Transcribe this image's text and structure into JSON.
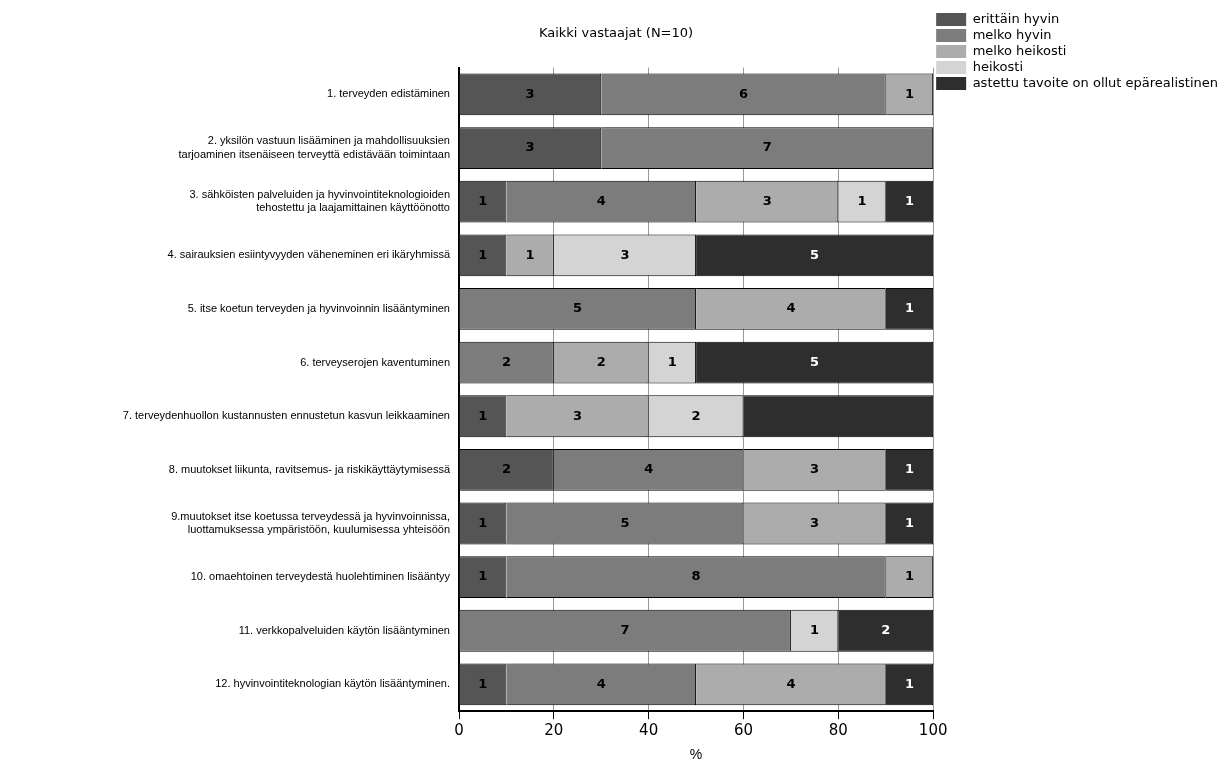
{
  "chart_data": {
    "type": "bar",
    "orientation": "horizontal",
    "stacked": true,
    "title": "Kaikki vastaajat (N=10)",
    "xlabel": "%",
    "categories": [
      "1. terveyden edistäminen",
      "2. yksilön vastuun lisääminen ja mahdollisuuksien\ntarjoaminen itsenäiseen terveyttä edistävään toimintaan",
      "3. sähköisten palveluiden ja hyvinvointiteknologioiden\ntehostettu ja laajamittainen käyttöönotto",
      "4. sairauksien esiintyvyyden väheneminen eri ikäryhmissä",
      "5. itse koetun terveyden ja hyvinvoinnin lisääntyminen",
      "6. terveyserojen kaventuminen",
      "7. terveydenhuollon kustannusten ennustetun kasvun leikkaaminen",
      "8. muutokset liikunta, ravitsemus- ja riskikäyttäytymisessä",
      "9.muutokset itse koetussa terveydessä ja hyvinvoinnissa,\nluottamuksessa ympäristöön, kuulumisessa yhteisöön",
      "10. omaehtoinen terveydestä huolehtiminen lisääntyy",
      "11. verkkopalveluiden käytön lisääntyminen",
      "12. hyvinvointiteknologian käytön lisääntyminen."
    ],
    "series": [
      {
        "name": "erittäin hyvin",
        "color": "#555555",
        "values": [
          30,
          30,
          10,
          10,
          0,
          0,
          10,
          20,
          10,
          10,
          0,
          10
        ]
      },
      {
        "name": "melko hyvin",
        "color": "#7c7c7c",
        "values": [
          60,
          70,
          40,
          0,
          50,
          20,
          0,
          40,
          50,
          80,
          70,
          40
        ]
      },
      {
        "name": "melko heikosti",
        "color": "#acacac",
        "values": [
          10,
          0,
          30,
          10,
          40,
          20,
          30,
          30,
          30,
          10,
          0,
          40
        ]
      },
      {
        "name": "heikosti",
        "color": "#d4d4d4",
        "values": [
          0,
          0,
          10,
          30,
          0,
          10,
          20,
          0,
          0,
          0,
          10,
          0
        ]
      },
      {
        "name": "astettu tavoite on ollut epärealistinen",
        "color": "#2e2e2e",
        "values": [
          0,
          0,
          10,
          50,
          10,
          50,
          40,
          10,
          10,
          0,
          20,
          10
        ]
      }
    ],
    "annotations": [
      {
        "text": "3",
        "x": 15,
        "y": "1. terveyden edistäminen"
      },
      {
        "text": "6",
        "x": 60,
        "y": "1. terveyden edistäminen"
      },
      {
        "text": "1",
        "x": 95,
        "y": "1. terveyden edistäminen"
      },
      {
        "text": "3",
        "x": 15,
        "y": "2. yksilön vastuun lisääminen ja mahdollisuuksien\ntarjoaminen itsenäiseen terveyttä edistävään toimintaan"
      },
      {
        "text": "7",
        "x": 65,
        "y": "2. yksilön vastuun lisääminen ja mahdollisuuksien\ntarjoaminen itsenäiseen terveyttä edistävään toimintaan"
      },
      {
        "text": "1",
        "x": 5,
        "y": "3. sähköisten palveluiden ja hyvinvointiteknologioiden\ntehostettu ja laajamittainen käyttöönotto"
      },
      {
        "text": "4",
        "x": 30,
        "y": "3. sähköisten palveluiden ja hyvinvointiteknologioiden\ntehostettu ja laajamittainen käyttöönotto"
      },
      {
        "text": "3",
        "x": 65,
        "y": "3. sähköisten palveluiden ja hyvinvointiteknologioiden\ntehostettu ja laajamittainen käyttöönotto"
      },
      {
        "text": "1",
        "x": 85,
        "y": "3. sähköisten palveluiden ja hyvinvointiteknologioiden\ntehostettu ja laajamittainen käyttöönotto"
      },
      {
        "text": "1",
        "x": 95,
        "y": "3. sähköisten palveluiden ja hyvinvointiteknologioiden\ntehostettu ja laajamittainen käyttöönotto"
      },
      {
        "text": "1",
        "x": 5,
        "y": "4. sairauksien esiintyvyyden väheneminen eri ikäryhmissä"
      },
      {
        "text": "1",
        "x": 15,
        "y": "4. sairauksien esiintyvyyden väheneminen eri ikäryhmissä"
      },
      {
        "text": "3",
        "x": 35,
        "y": "4. sairauksien esiintyvyyden väheneminen eri ikäryhmissä"
      },
      {
        "text": "5",
        "x": 75,
        "y": "4. sairauksien esiintyvyyden väheneminen eri ikäryhmissä"
      },
      {
        "text": "5",
        "x": 25,
        "y": "5. itse koetun terveyden ja hyvinvoinnin lisääntyminen"
      },
      {
        "text": "4",
        "x": 70,
        "y": "5. itse koetun terveyden ja hyvinvoinnin lisääntyminen"
      },
      {
        "text": "1",
        "x": 95,
        "y": "5. itse koetun terveyden ja hyvinvoinnin lisääntyminen"
      },
      {
        "text": "2",
        "x": 10,
        "y": "6. terveyserojen kaventuminen"
      },
      {
        "text": "2",
        "x": 30,
        "y": "6. terveyserojen kaventuminen"
      },
      {
        "text": "1",
        "x": 45,
        "y": "6. terveyserojen kaventuminen"
      },
      {
        "text": "5",
        "x": 75,
        "y": "6. terveyserojen kaventuminen"
      },
      {
        "text": "1",
        "x": 5,
        "y": "7. terveydenhuollon kustannusten ennustetun kasvun leikkaaminen"
      },
      {
        "text": "3",
        "x": 25,
        "y": "7. terveydenhuollon kustannusten ennustetun kasvun leikkaaminen"
      },
      {
        "text": "2",
        "x": 50,
        "y": "7. terveydenhuollon kustannusten ennustetun kasvun leikkaaminen"
      },
      {
        "text": "2",
        "x": 10,
        "y": "8. muutokset liikunta, ravitsemus- ja riskikäyttäytymisessä"
      },
      {
        "text": "4",
        "x": 40,
        "y": "8. muutokset liikunta, ravitsemus- ja riskikäyttäytymisessä"
      },
      {
        "text": "3",
        "x": 75,
        "y": "8. muutokset liikunta, ravitsemus- ja riskikäyttäytymisessä"
      },
      {
        "text": "1",
        "x": 95,
        "y": "8. muutokset liikunta, ravitsemus- ja riskikäyttäytymisessä"
      },
      {
        "text": "1",
        "x": 5,
        "y": "9.muutokset itse koetussa terveydessä ja hyvinvoinnissa,\nluottamuksessa ympäristöön, kuulumisessa yhteisöön"
      },
      {
        "text": "5",
        "x": 35,
        "y": "9.muutokset itse koetussa terveydessä ja hyvinvoinnissa,\nluottamuksessa ympäristöön, kuulumisessa yhteisöön"
      },
      {
        "text": "3",
        "x": 75,
        "y": "9.muutokset itse koetussa terveydessä ja hyvinvoinnissa,\nluottamuksessa ympäristöön, kuulumisessa yhteisöön"
      },
      {
        "text": "1",
        "x": 95,
        "y": "9.muutokset itse koetussa terveydessä ja hyvinvoinnissa,\nluottamuksessa ympäristöön, kuulumisessa yhteisöön"
      },
      {
        "text": "1",
        "x": 5,
        "y": "10. omaehtoinen terveydestä huolehtiminen lisääntyy"
      },
      {
        "text": "8",
        "x": 50,
        "y": "10. omaehtoinen terveydestä huolehtiminen lisääntyy"
      },
      {
        "text": "1",
        "x": 95,
        "y": "10. omaehtoinen terveydestä huolehtiminen lisääntyy"
      },
      {
        "text": "7",
        "x": 35,
        "y": "11. verkkopalveluiden käytön lisääntyminen"
      },
      {
        "text": "1",
        "x": 75,
        "y": "11. verkkopalveluiden käytön lisääntyminen"
      },
      {
        "text": "2",
        "x": 90,
        "y": "11. verkkopalveluiden käytön lisääntyminen"
      },
      {
        "text": "1",
        "x": 5,
        "y": "12. hyvinvointiteknologian käytön lisääntyminen."
      },
      {
        "text": "4",
        "x": 30,
        "y": "12. hyvinvointiteknologian käytön lisääntyminen."
      },
      {
        "text": "4",
        "x": 70,
        "y": "12. hyvinvointiteknologian käytön lisääntyminen."
      },
      {
        "text": "1",
        "x": 95,
        "y": "12. hyvinvointiteknologian käytön lisääntyminen."
      }
    ],
    "xlim": [
      0,
      100
    ],
    "xticks": [
      0,
      20,
      40,
      60,
      80,
      100
    ],
    "grid": "x",
    "legend": "top right"
  }
}
